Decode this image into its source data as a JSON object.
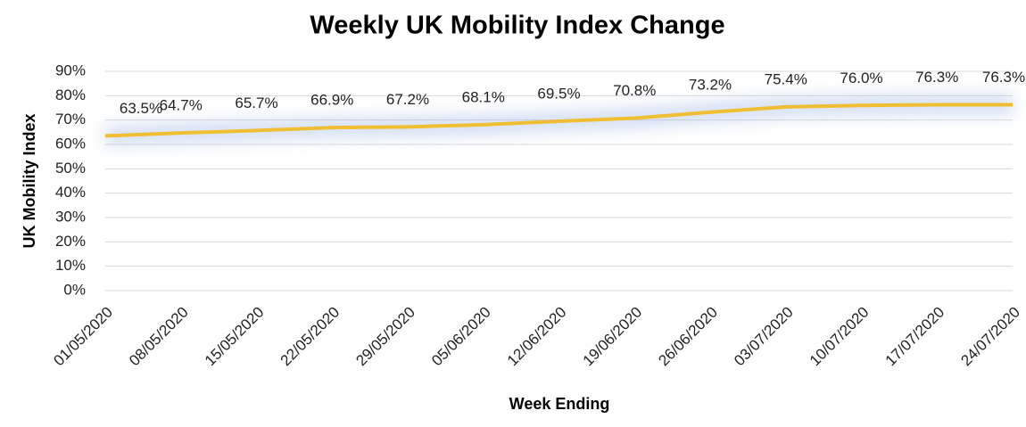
{
  "chart_data": {
    "type": "line",
    "title": "Weekly UK Mobility Index Change",
    "xlabel": "Week Ending",
    "ylabel": "UK Mobility Index",
    "categories": [
      "01/05/2020",
      "08/05/2020",
      "15/05/2020",
      "22/05/2020",
      "29/05/2020",
      "05/06/2020",
      "12/06/2020",
      "19/06/2020",
      "26/06/2020",
      "03/07/2020",
      "10/07/2020",
      "17/07/2020",
      "24/07/2020"
    ],
    "series": [
      {
        "name": "UK Mobility Index",
        "color": "#f0be32",
        "values": [
          63.5,
          64.7,
          65.7,
          66.9,
          67.2,
          68.1,
          69.5,
          70.8,
          73.2,
          75.4,
          76.0,
          76.3,
          76.3
        ],
        "value_labels": [
          "63.5%",
          "64.7%",
          "65.7%",
          "66.9%",
          "67.2%",
          "68.1%",
          "69.5%",
          "70.8%",
          "73.2%",
          "75.4%",
          "76.0%",
          "76.3%",
          "76.3%"
        ]
      }
    ],
    "ylim": [
      0,
      90
    ],
    "yticks": [
      {
        "value": 0,
        "label": "0%"
      },
      {
        "value": 10,
        "label": "10%"
      },
      {
        "value": 20,
        "label": "20%"
      },
      {
        "value": 30,
        "label": "30%"
      },
      {
        "value": 40,
        "label": "40%"
      },
      {
        "value": 50,
        "label": "50%"
      },
      {
        "value": 60,
        "label": "60%"
      },
      {
        "value": 70,
        "label": "70%"
      },
      {
        "value": 80,
        "label": "80%"
      },
      {
        "value": 90,
        "label": "90%"
      }
    ],
    "grid": true
  }
}
